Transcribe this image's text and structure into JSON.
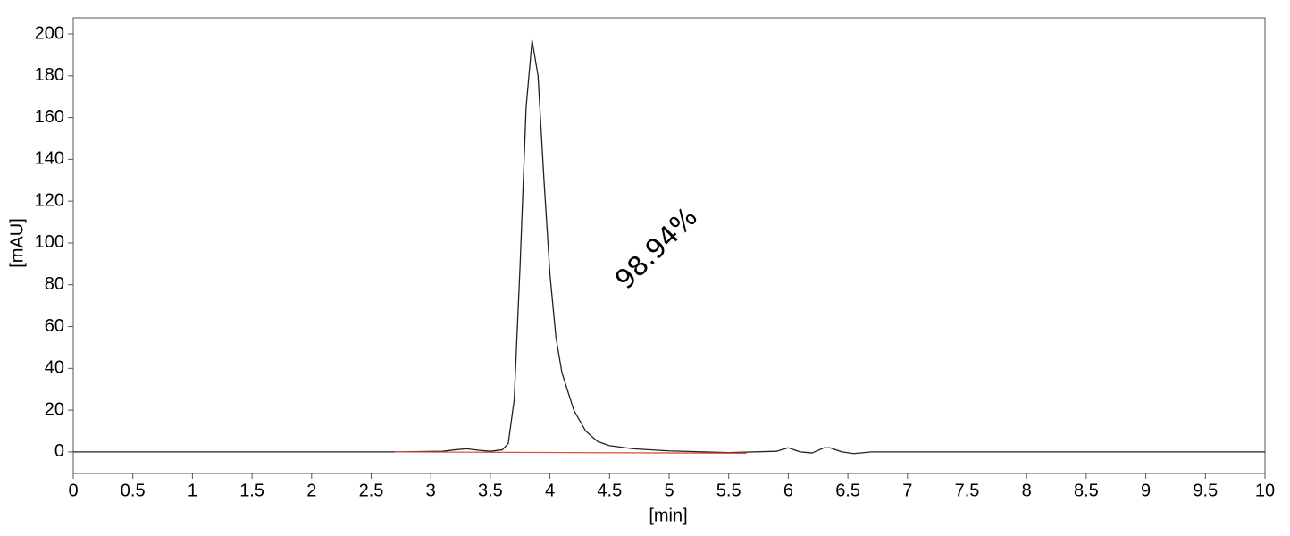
{
  "chart_data": {
    "type": "line",
    "xlabel": "[min]",
    "ylabel": "[mAU]",
    "xlim": [
      0,
      10
    ],
    "ylim": [
      -10.3,
      207.7
    ],
    "xticks": [
      0,
      0.5,
      1,
      1.5,
      2,
      2.5,
      3,
      3.5,
      4,
      4.5,
      5,
      5.5,
      6,
      6.5,
      7,
      7.5,
      8,
      8.5,
      9,
      9.5,
      10
    ],
    "yticks": [
      0,
      20,
      40,
      60,
      80,
      100,
      120,
      140,
      160,
      180,
      200
    ],
    "grid": false,
    "series": [
      {
        "color": "#222222",
        "x": [
          0,
          2.2,
          2.7,
          3.1,
          3.2,
          3.3,
          3.4,
          3.5,
          3.6,
          3.65,
          3.7,
          3.75,
          3.8,
          3.85,
          3.9,
          3.95,
          4.0,
          4.05,
          4.1,
          4.2,
          4.3,
          4.4,
          4.5,
          4.7,
          5.0,
          5.5,
          5.9,
          6.0,
          6.1,
          6.2,
          6.3,
          6.35,
          6.45,
          6.55,
          6.7,
          7,
          10
        ],
        "values": [
          0,
          0,
          0,
          0.3,
          1,
          1.5,
          0.8,
          0.3,
          1,
          4,
          25,
          90,
          165,
          197,
          180,
          130,
          85,
          55,
          38,
          20,
          10,
          5,
          3,
          1.5,
          0.5,
          -0.3,
          0.3,
          2,
          0,
          -0.5,
          2,
          2,
          0,
          -0.8,
          0,
          0,
          0
        ]
      },
      {
        "color": "#e05040",
        "x": [
          2.7,
          5.65
        ],
        "values": [
          0,
          -0.6
        ]
      }
    ],
    "annotations": [
      {
        "text": "98.94%",
        "x": 4.9,
        "y": 97,
        "rotation": -45
      }
    ]
  }
}
